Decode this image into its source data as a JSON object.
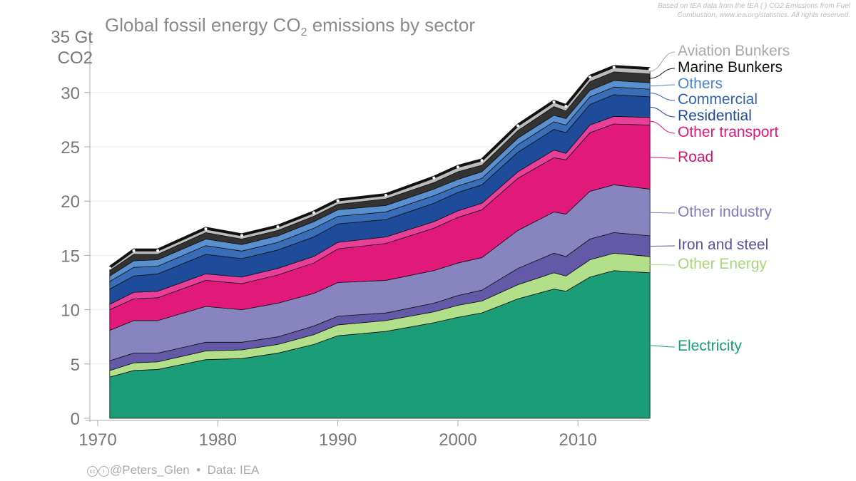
{
  "header": {
    "title": "Global fossil energy CO",
    "title_sub": "2",
    "title_rest": " emissions by sector",
    "note_line1": "Based on IEA data from the IEA ( ) CO2 Emissions from Fuel",
    "note_line2": "Combustion, www.iea.org/statistics. All rights reserved."
  },
  "footer": {
    "handle": "@Peters_Glen",
    "separator": "•",
    "source": "Data: IEA"
  },
  "chart_data": {
    "type": "area",
    "title": "Global fossil energy CO2 emissions by sector",
    "ylabel": "Gt CO2",
    "ylabel_top": "35 Gt",
    "ylabel_unit": "CO2",
    "ylim": [
      0,
      35
    ],
    "xlim": [
      1970,
      2016
    ],
    "yticks": [
      "0",
      "5",
      "10",
      "15",
      "20",
      "25",
      "30"
    ],
    "xticks": [
      "1970",
      "1980",
      "1990",
      "2000",
      "2010"
    ],
    "grid": true,
    "legend": "right (direct labels)",
    "x": [
      1971,
      1973,
      1975,
      1979,
      1982,
      1985,
      1988,
      1990,
      1994,
      1998,
      2000,
      2002,
      2005,
      2008,
      2009,
      2011,
      2013,
      2016
    ],
    "series": [
      {
        "name": "Electricity",
        "color": "#1b9e77",
        "values": [
          3.8,
          4.4,
          4.5,
          5.4,
          5.5,
          6.0,
          6.8,
          7.6,
          8.0,
          8.8,
          9.3,
          9.7,
          11.0,
          11.9,
          11.7,
          13.0,
          13.6,
          13.4
        ]
      },
      {
        "name": "Other Energy",
        "color": "#b2df8a",
        "values": [
          0.6,
          0.7,
          0.7,
          0.8,
          0.8,
          0.8,
          0.9,
          1.0,
          1.0,
          1.0,
          1.1,
          1.1,
          1.3,
          1.5,
          1.4,
          1.6,
          1.6,
          1.5
        ]
      },
      {
        "name": "Iron and steel",
        "color": "#6359a6",
        "values": [
          0.9,
          0.9,
          0.8,
          0.8,
          0.7,
          0.7,
          0.8,
          0.8,
          0.7,
          0.8,
          0.9,
          1.0,
          1.5,
          1.8,
          1.8,
          1.9,
          1.9,
          1.9
        ]
      },
      {
        "name": "Other industry",
        "color": "#8884c0",
        "values": [
          2.8,
          3.0,
          3.0,
          3.3,
          3.0,
          3.1,
          3.0,
          3.1,
          3.0,
          3.0,
          3.0,
          3.0,
          3.5,
          3.8,
          3.9,
          4.4,
          4.4,
          4.3
        ]
      },
      {
        "name": "Road",
        "color": "#e0197a",
        "values": [
          1.9,
          2.0,
          2.1,
          2.4,
          2.4,
          2.6,
          2.8,
          3.1,
          3.4,
          3.9,
          4.2,
          4.4,
          4.8,
          5.0,
          5.0,
          5.4,
          5.6,
          5.9
        ]
      },
      {
        "name": "Other transport",
        "color": "#ea3f99",
        "values": [
          0.5,
          0.6,
          0.6,
          0.6,
          0.6,
          0.6,
          0.6,
          0.6,
          0.6,
          0.6,
          0.6,
          0.6,
          0.6,
          0.7,
          0.6,
          0.7,
          0.7,
          0.7
        ]
      },
      {
        "name": "Residential",
        "color": "#1f4b9b",
        "values": [
          1.4,
          1.5,
          1.6,
          1.8,
          1.7,
          1.7,
          1.8,
          1.7,
          1.6,
          1.7,
          1.7,
          1.7,
          1.8,
          1.9,
          1.9,
          1.9,
          2.0,
          1.9
        ]
      },
      {
        "name": "Commercial",
        "color": "#3a6db7",
        "values": [
          0.7,
          0.8,
          0.7,
          0.8,
          0.7,
          0.7,
          0.8,
          0.7,
          0.7,
          0.7,
          0.6,
          0.6,
          0.7,
          0.7,
          0.7,
          0.7,
          0.7,
          0.7
        ]
      },
      {
        "name": "Others",
        "color": "#5b90d0",
        "values": [
          0.5,
          0.6,
          0.6,
          0.6,
          0.6,
          0.6,
          0.6,
          0.6,
          0.6,
          0.6,
          0.6,
          0.6,
          0.6,
          0.6,
          0.6,
          0.6,
          0.6,
          0.6
        ]
      },
      {
        "name": "Marine Bunkers",
        "color": "#333333",
        "values": [
          0.5,
          0.6,
          0.5,
          0.6,
          0.5,
          0.5,
          0.5,
          0.5,
          0.6,
          0.6,
          0.7,
          0.6,
          0.7,
          0.8,
          0.7,
          0.8,
          0.8,
          0.8
        ]
      },
      {
        "name": "Aviation Bunkers",
        "color": "#bbbbbb",
        "values": [
          0.3,
          0.4,
          0.4,
          0.4,
          0.4,
          0.4,
          0.4,
          0.4,
          0.4,
          0.5,
          0.5,
          0.5,
          0.5,
          0.5,
          0.5,
          0.5,
          0.5,
          0.5
        ]
      }
    ],
    "labels": [
      {
        "name": "Aviation Bunkers",
        "color": "#aaaaaa"
      },
      {
        "name": "Marine Bunkers",
        "color": "#111111"
      },
      {
        "name": "Others",
        "color": "#4a86cc"
      },
      {
        "name": "Commercial",
        "color": "#2f63b0"
      },
      {
        "name": "Residential",
        "color": "#1f4b9b"
      },
      {
        "name": "Other transport",
        "color": "#e0197a"
      },
      {
        "name": "Road",
        "color": "#d0156e"
      },
      {
        "name": "Other industry",
        "color": "#7f7bbd"
      },
      {
        "name": "Iron and steel",
        "color": "#5a52a0"
      },
      {
        "name": "Other Energy",
        "color": "#a6d879"
      },
      {
        "name": "Electricity",
        "color": "#1b9e77"
      }
    ]
  }
}
